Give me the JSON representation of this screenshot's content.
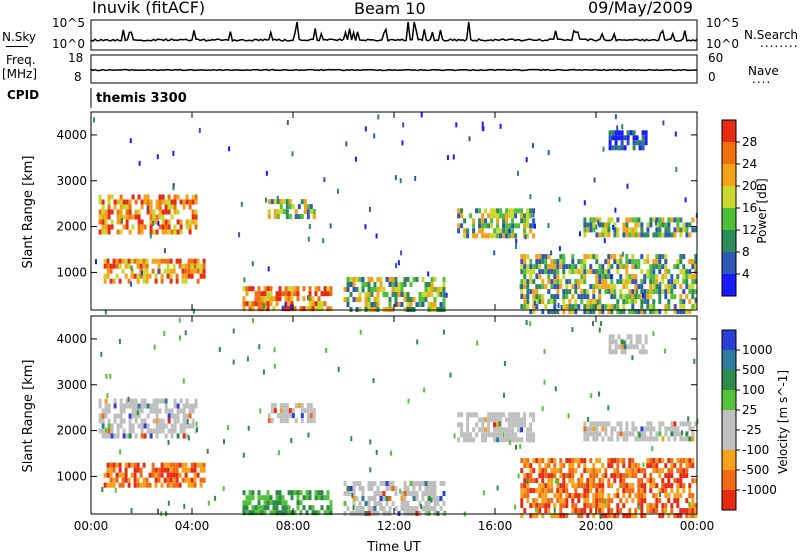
{
  "header": {
    "station": "Inuvik (fitACF)",
    "beam": "Beam 10",
    "date": "09/May/2009"
  },
  "left_labels": {
    "nsky": "N.Sky",
    "freq": "Freq.",
    "freq_unit": "[MHz]",
    "cpid": "CPID"
  },
  "right_labels": {
    "nsearch": "N.Search",
    "nsearch_marker": "........",
    "nave": "Nave",
    "nave_marker": "...."
  },
  "strips": {
    "noise_left_ticks": [
      "10^5",
      "10^0"
    ],
    "noise_right_ticks": [
      "10^5",
      "10^0"
    ],
    "freq_left_ticks": [
      "18",
      "8"
    ],
    "freq_right_ticks": [
      "60",
      "0"
    ],
    "cpid_text": "themis 3300"
  },
  "colors": {
    "power_scale": [
      "#1a1aff",
      "#2f58b4",
      "#2f8a5a",
      "#4fbf3a",
      "#c8d82e",
      "#f5a21a",
      "#f07010",
      "#e82a14"
    ],
    "velocity_scale": [
      "#2a3fd8",
      "#2e7a9a",
      "#2e8a4a",
      "#55c23a",
      "#bfbfbf",
      "#bfbfbf",
      "#f5a21a",
      "#f06a14",
      "#e82a14"
    ]
  },
  "chart_data": [
    {
      "type": "heatmap",
      "ylabel": "Slant Range [km]",
      "yticks": [
        "1000",
        "2000",
        "3000",
        "4000"
      ],
      "ylim": [
        180,
        4500
      ],
      "xticks": [
        "00:00",
        "04:00",
        "08:00",
        "12:00",
        "16:00",
        "20:00",
        "00:00"
      ],
      "colorbar_label": "Power [dB]",
      "colorbar_ticks": [
        "4",
        "8",
        "12",
        "16",
        "20",
        "24",
        "28"
      ],
      "patches": [
        {
          "t": [
            0.3,
            4.2
          ],
          "r": [
            1900,
            2700
          ],
          "level": "high"
        },
        {
          "t": [
            0.5,
            4.5
          ],
          "r": [
            800,
            1300
          ],
          "level": "high"
        },
        {
          "t": [
            6.0,
            9.5
          ],
          "r": [
            180,
            700
          ],
          "level": "high"
        },
        {
          "t": [
            7.0,
            8.8
          ],
          "r": [
            2200,
            2600
          ],
          "level": "medium"
        },
        {
          "t": [
            10.0,
            14.0
          ],
          "r": [
            180,
            900
          ],
          "level": "medium"
        },
        {
          "t": [
            14.5,
            17.5
          ],
          "r": [
            1800,
            2400
          ],
          "level": "medium"
        },
        {
          "t": [
            17.0,
            24.0
          ],
          "r": [
            180,
            1400
          ],
          "level": "medium"
        },
        {
          "t": [
            19.5,
            24.0
          ],
          "r": [
            1800,
            2200
          ],
          "level": "medium"
        },
        {
          "t": [
            20.5,
            22.0
          ],
          "r": [
            3700,
            4100
          ],
          "level": "low"
        }
      ]
    },
    {
      "type": "heatmap",
      "ylabel": "Slant Range [km]",
      "yticks": [
        "1000",
        "2000",
        "3000",
        "4000"
      ],
      "ylim": [
        180,
        4500
      ],
      "xlabel": "Time UT",
      "xticks": [
        "00:00",
        "04:00",
        "08:00",
        "12:00",
        "16:00",
        "20:00",
        "00:00"
      ],
      "colorbar_label": "Velocity [m s^-1]",
      "colorbar_ticks": [
        "1000",
        "500",
        "100",
        "25",
        "-25",
        "-100",
        "-500",
        "-1000"
      ],
      "patches": [
        {
          "t": [
            0.3,
            4.2
          ],
          "r": [
            1900,
            2700
          ],
          "level": "ground"
        },
        {
          "t": [
            0.5,
            4.5
          ],
          "r": [
            800,
            1300
          ],
          "level": "negative"
        },
        {
          "t": [
            6.0,
            9.5
          ],
          "r": [
            180,
            700
          ],
          "level": "positive"
        },
        {
          "t": [
            7.0,
            8.8
          ],
          "r": [
            2200,
            2600
          ],
          "level": "ground"
        },
        {
          "t": [
            10.0,
            14.0
          ],
          "r": [
            180,
            900
          ],
          "level": "ground"
        },
        {
          "t": [
            14.5,
            17.5
          ],
          "r": [
            1800,
            2400
          ],
          "level": "ground"
        },
        {
          "t": [
            17.0,
            24.0
          ],
          "r": [
            180,
            1400
          ],
          "level": "negative"
        },
        {
          "t": [
            19.5,
            24.0
          ],
          "r": [
            1800,
            2200
          ],
          "level": "ground"
        },
        {
          "t": [
            20.5,
            22.0
          ],
          "r": [
            3700,
            4100
          ],
          "level": "ground"
        }
      ]
    }
  ]
}
